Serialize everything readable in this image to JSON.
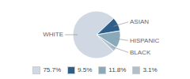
{
  "chart_data": {
    "type": "pie",
    "categories": [
      "WHITE",
      "ASIAN",
      "HISPANIC",
      "BLACK"
    ],
    "values": [
      75.7,
      9.5,
      11.8,
      3.1
    ],
    "value_labels": [
      "75.7%",
      "9.5%",
      "11.8%",
      "3.1%"
    ],
    "colors": [
      "#d0d8e4",
      "#2e5f8a",
      "#8aaabb",
      "#b0bfcc"
    ],
    "legend": "bottom"
  }
}
